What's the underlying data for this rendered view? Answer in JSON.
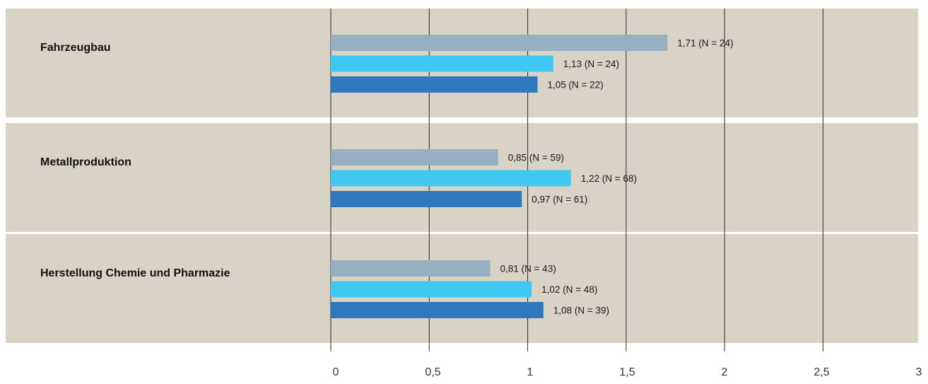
{
  "chart_data": {
    "type": "bar",
    "orientation": "horizontal",
    "categories": [
      "Fahrzeugbau",
      "Metallproduktion",
      "Herstellung Chemie und Pharmazie"
    ],
    "series": [
      {
        "color": "#97afc0",
        "values": [
          1.71,
          0.85,
          0.81
        ],
        "labels": [
          "1,71 (N = 24)",
          "0,85 (N = 59)",
          "0,81 (N = 43)"
        ]
      },
      {
        "color": "#41c8f2",
        "values": [
          1.13,
          1.22,
          1.02
        ],
        "labels": [
          "1,13 (N = 24)",
          "1,22 (N = 68)",
          "1,02 (N = 48)"
        ]
      },
      {
        "color": "#2f78bd",
        "values": [
          1.05,
          0.97,
          1.08
        ],
        "labels": [
          "1,05 (N = 22)",
          "0,97 (N = 61)",
          "1,08 (N = 39)"
        ]
      }
    ],
    "xlim": [
      0,
      3
    ],
    "x_ticks": [
      "0",
      "0,5",
      "1",
      "1,5",
      "2",
      "2,5",
      "3"
    ],
    "grid": true,
    "colors": {
      "band_background": "#d9d3c6",
      "gridline": "#2a2a2a"
    }
  }
}
